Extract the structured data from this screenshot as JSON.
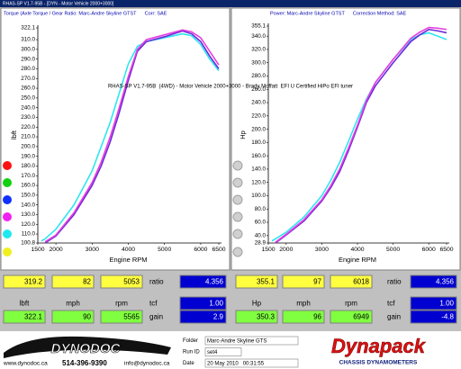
{
  "window": {
    "title": "RHAS-SP V1.7-95B - [DYN - Motor Vehicle 2000+3000]"
  },
  "caption": "RHAS-SP V1.7-95B  (4WD) - Motor Vehicle 2000+3000 - Brady Moffatt  EFI U Certified HiPo EFI tuner",
  "chart_data": [
    {
      "type": "line",
      "title": "Torque (Axle Torque / Gear Ratio: Marc-Andre Skyline GTST      Corr: SAE",
      "x_label": "Engine RPM",
      "y_label": "lbft",
      "x": [
        1600,
        1700,
        2000,
        2500,
        3000,
        3250,
        3500,
        3750,
        4000,
        4250,
        4500,
        5000,
        5500,
        5750,
        6000,
        6250,
        6500
      ],
      "xlim": [
        1500,
        6500
      ],
      "xticks": [
        1500,
        2000,
        3000,
        4000,
        5000,
        6000,
        6500
      ],
      "ylim": [
        100.8,
        322.1
      ],
      "yticks": [
        100.8,
        {
          "value": 110,
          "label": "110.0"
        },
        {
          "value": 120,
          "label": "120.0"
        },
        {
          "value": 130,
          "label": "130.0"
        },
        {
          "value": 140,
          "label": "140.0"
        },
        {
          "value": 150,
          "label": "150.0"
        },
        {
          "value": 160,
          "label": "160.0"
        },
        {
          "value": 170,
          "label": "170.0"
        },
        {
          "value": 180,
          "label": "180.0"
        },
        {
          "value": 190,
          "label": "190.0"
        },
        {
          "value": 200,
          "label": "200.0"
        },
        {
          "value": 210,
          "label": "210.0"
        },
        {
          "value": 220,
          "label": "220.0"
        },
        {
          "value": 230,
          "label": "230.0"
        },
        {
          "value": 240,
          "label": "240.0"
        },
        {
          "value": 250,
          "label": "250.0"
        },
        {
          "value": 260,
          "label": "260.0"
        },
        {
          "value": 270,
          "label": "270.0"
        },
        {
          "value": 280,
          "label": "280.0"
        },
        {
          "value": 290,
          "label": "290.0"
        },
        {
          "value": 300,
          "label": "300.0"
        },
        {
          "value": 310,
          "label": "310.0"
        },
        322.1
      ],
      "series": [
        {
          "color": "#2ee6f0",
          "values": [
            103,
            105,
            115,
            140,
            175,
            200,
            225,
            255,
            285,
            303,
            308,
            312,
            316,
            314,
            305,
            290,
            278
          ]
        },
        {
          "color": "#6a2bd9",
          "values": [
            null,
            100.8,
            108,
            130,
            160,
            180,
            205,
            235,
            268,
            298,
            308,
            313,
            319,
            316,
            308,
            293,
            280
          ]
        },
        {
          "color": "#e83ee0",
          "values": [
            null,
            102,
            109,
            132,
            163,
            184,
            210,
            240,
            272,
            300,
            310,
            315,
            320,
            318,
            312,
            298,
            284
          ]
        }
      ]
    },
    {
      "type": "line",
      "title": "Power: Marc-Andre Skyline GTST      Correction Method: SAE",
      "x_label": "Engine RPM",
      "y_label": "Hp",
      "x": [
        1600,
        1700,
        2000,
        2500,
        3000,
        3250,
        3500,
        3750,
        4000,
        4250,
        4500,
        5000,
        5500,
        5750,
        6000,
        6250,
        6500
      ],
      "xlim": [
        1500,
        6500
      ],
      "xticks": [
        1500,
        2000,
        3000,
        4000,
        5000,
        6000,
        6500
      ],
      "ylim": [
        28.9,
        355.1
      ],
      "yticks": [
        28.9,
        {
          "value": 40,
          "label": "40.0"
        },
        {
          "value": 60,
          "label": "60.0"
        },
        {
          "value": 80,
          "label": "80.0"
        },
        {
          "value": 100,
          "label": "100.0"
        },
        {
          "value": 120,
          "label": "120.0"
        },
        {
          "value": 140,
          "label": "140.0"
        },
        {
          "value": 160,
          "label": "160.0"
        },
        {
          "value": 180,
          "label": "180.0"
        },
        {
          "value": 200,
          "label": "200.0"
        },
        {
          "value": 220,
          "label": "220.0"
        },
        {
          "value": 240,
          "label": "240.0"
        },
        {
          "value": 260,
          "label": "260.0"
        },
        {
          "value": 280,
          "label": "280.0"
        },
        {
          "value": 300,
          "label": "300.0"
        },
        {
          "value": 320,
          "label": "320.0"
        },
        {
          "value": 340,
          "label": "340.0"
        },
        355.1
      ],
      "series": [
        {
          "color": "#2ee6f0",
          "values": [
            32,
            35,
            45,
            68,
            100,
            123,
            150,
            182,
            215,
            245,
            270,
            305,
            335,
            342,
            345,
            340,
            335
          ]
        },
        {
          "color": "#6a2bd9",
          "values": [
            null,
            28.9,
            41,
            62,
            92,
            112,
            136,
            168,
            203,
            240,
            265,
            300,
            332,
            342,
            350,
            348,
            345
          ]
        },
        {
          "color": "#e83ee0",
          "values": [
            null,
            30,
            42,
            64,
            94,
            115,
            140,
            172,
            206,
            243,
            270,
            305,
            337,
            346,
            353,
            352,
            350
          ]
        }
      ]
    }
  ],
  "readouts": [
    {
      "max": [
        "319.2",
        "82",
        "5053"
      ],
      "units": [
        "lbft",
        "mph",
        "rpm"
      ],
      "current": [
        "322.1",
        "90",
        "5565"
      ],
      "labels": [
        "ratio",
        "tcf",
        "gain"
      ],
      "settings": [
        "4.356",
        "1.00",
        "2.9"
      ]
    },
    {
      "max": [
        "355.1",
        "97",
        "6018"
      ],
      "units": [
        "Hp",
        "mph",
        "rpm"
      ],
      "current": [
        "350.3",
        "96",
        "6949"
      ],
      "labels": [
        "ratio",
        "tcf",
        "gain"
      ],
      "settings": [
        "4.356",
        "1.00",
        "-4.8"
      ]
    }
  ],
  "footer": {
    "logo": "DYNODOC",
    "website": "www.dynodoc.ca",
    "phone": "514-396-9390",
    "email": "info@dynodoc.ca",
    "fields": [
      {
        "label": "Folder",
        "value": "Marc-Andre Skyline GTS"
      },
      {
        "label": "Run ID",
        "value": "set4"
      },
      {
        "label": "Date",
        "value": "20 May 2010   00:31:55"
      }
    ],
    "brand": "Dynapack",
    "brand_sub": "CHASSIS DYNAMOMETERS"
  }
}
